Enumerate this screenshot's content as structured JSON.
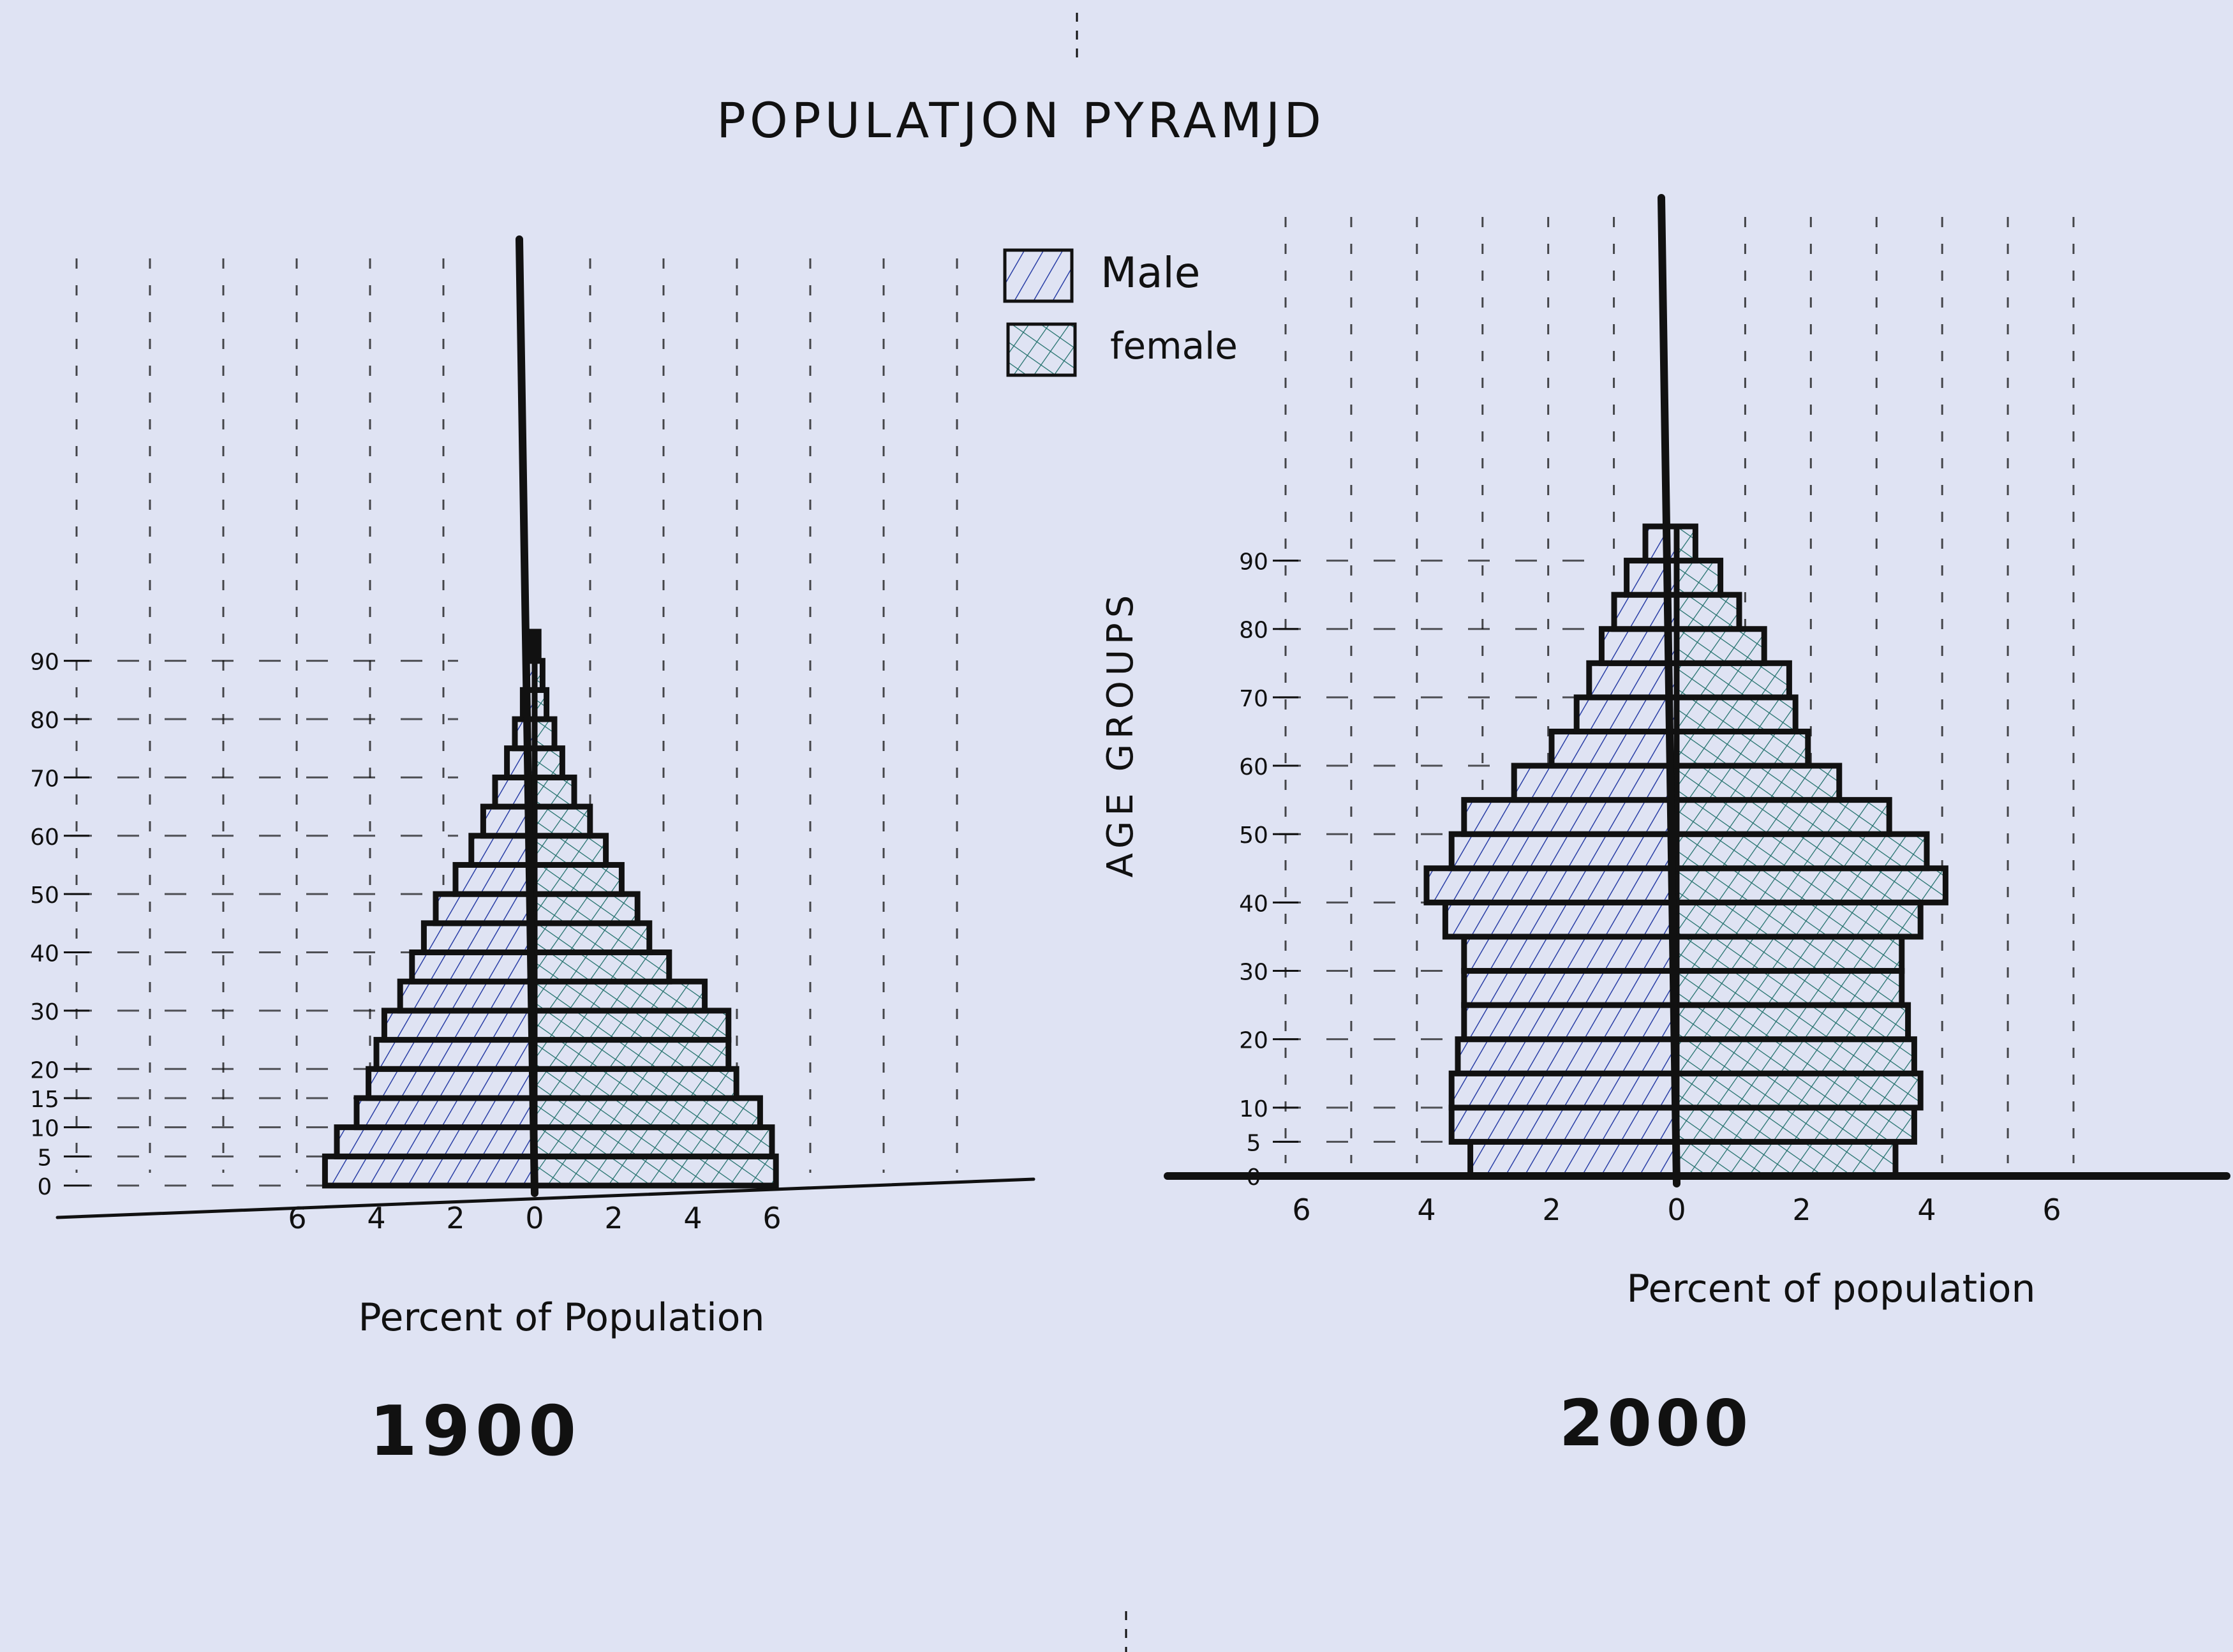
{
  "title": "POPULATJON PYRAMJD",
  "side_label": "AGE GROUPS",
  "legend": [
    {
      "key": "male",
      "label": "Male",
      "color": "#2a3fa6"
    },
    {
      "key": "female",
      "label": "female",
      "color": "#1f6f6a"
    }
  ],
  "colors": {
    "male": "#2a3fa6",
    "female": "#1f6f6a",
    "ink": "#111111",
    "paper": "#dfe3f3"
  },
  "chart_data": [
    {
      "type": "bar",
      "orientation": "horizontal-pyramid",
      "caption": "1900",
      "xlabel": "Percent of Population",
      "x_ticks_left": [
        "6",
        "4",
        "2",
        "0"
      ],
      "x_ticks_right": [
        "2",
        "4",
        "6"
      ],
      "y_ticks": [
        "0",
        "5",
        "10",
        "15",
        "20",
        "30",
        "40",
        "50",
        "60",
        "70",
        "80",
        "90"
      ],
      "grid": true,
      "legend": "top-right",
      "age_groups": [
        "0-4",
        "5-9",
        "10-14",
        "15-19",
        "20-24",
        "25-29",
        "30-34",
        "35-39",
        "40-44",
        "45-49",
        "50-54",
        "55-59",
        "60-64",
        "65-69",
        "70-74",
        "75-79",
        "80-84",
        "85-89",
        "90+"
      ],
      "series": [
        {
          "name": "Male",
          "values": [
            5.3,
            5.0,
            4.5,
            4.2,
            4.0,
            3.8,
            3.4,
            3.1,
            2.8,
            2.5,
            2.0,
            1.6,
            1.3,
            1.0,
            0.7,
            0.5,
            0.3,
            0.2,
            0.1
          ]
        },
        {
          "name": "female",
          "values": [
            6.1,
            6.0,
            5.7,
            5.1,
            4.9,
            4.9,
            4.3,
            3.4,
            2.9,
            2.6,
            2.2,
            1.8,
            1.4,
            1.0,
            0.7,
            0.5,
            0.3,
            0.2,
            0.1
          ]
        }
      ]
    },
    {
      "type": "bar",
      "orientation": "horizontal-pyramid",
      "caption": "2000",
      "xlabel": "Percent of population",
      "x_ticks_left": [
        "6",
        "4",
        "2",
        "0"
      ],
      "x_ticks_right": [
        "2",
        "4",
        "6"
      ],
      "y_ticks": [
        "0",
        "5",
        "10",
        "20",
        "30",
        "40",
        "50",
        "60",
        "70",
        "80",
        "90"
      ],
      "grid": true,
      "age_groups": [
        "0-4",
        "5-9",
        "10-14",
        "15-19",
        "20-24",
        "25-29",
        "30-34",
        "35-39",
        "40-44",
        "45-49",
        "50-54",
        "55-59",
        "60-64",
        "65-69",
        "70-74",
        "75-79",
        "80-84",
        "85-89",
        "90+"
      ],
      "series": [
        {
          "name": "Male",
          "values": [
            3.3,
            3.6,
            3.6,
            3.5,
            3.4,
            3.4,
            3.4,
            3.7,
            4.0,
            3.6,
            3.4,
            2.6,
            2.0,
            1.6,
            1.4,
            1.2,
            1.0,
            0.8,
            0.5
          ]
        },
        {
          "name": "female",
          "values": [
            3.5,
            3.8,
            3.9,
            3.8,
            3.7,
            3.6,
            3.6,
            3.9,
            4.3,
            4.0,
            3.4,
            2.6,
            2.1,
            1.9,
            1.8,
            1.4,
            1.0,
            0.7,
            0.3
          ]
        }
      ]
    }
  ]
}
